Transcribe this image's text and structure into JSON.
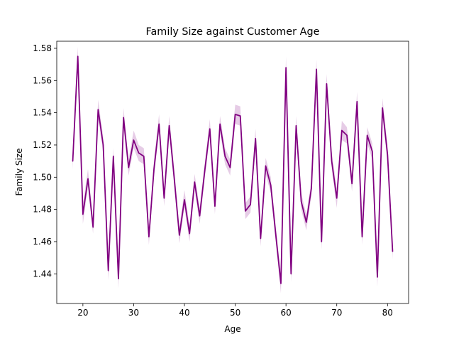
{
  "chart_data": {
    "type": "line",
    "title": "Family Size against Customer Age",
    "xlabel": "Age",
    "ylabel": "Family Size",
    "xlim": [
      14.85,
      84.15
    ],
    "ylim": [
      1.4216,
      1.5844
    ],
    "xticks": [
      20,
      30,
      40,
      50,
      60,
      70,
      80
    ],
    "yticks": [
      1.44,
      1.46,
      1.48,
      1.5,
      1.52,
      1.54,
      1.56,
      1.58
    ],
    "ytick_labels": [
      "1.44",
      "1.46",
      "1.48",
      "1.50",
      "1.52",
      "1.54",
      "1.56",
      "1.58"
    ],
    "grid": false,
    "line_color": "#800080",
    "band_color": "#800080",
    "series": [
      {
        "x": [
          18,
          19,
          20,
          21,
          22,
          23,
          24,
          25,
          26,
          27,
          28,
          29,
          30,
          31,
          32,
          33,
          34,
          35,
          36,
          37,
          38,
          39,
          40,
          41,
          42,
          43,
          44,
          45,
          46,
          47,
          48,
          49,
          50,
          51,
          52,
          53,
          54,
          55,
          56,
          57,
          58,
          59,
          60,
          61,
          62,
          63,
          64,
          65,
          66,
          67,
          68,
          69,
          70,
          71,
          72,
          73,
          74,
          75,
          76,
          77,
          78,
          79,
          80,
          81
        ],
        "y": [
          1.51,
          1.575,
          1.477,
          1.499,
          1.469,
          1.542,
          1.52,
          1.442,
          1.513,
          1.437,
          1.537,
          1.506,
          1.523,
          1.515,
          1.513,
          1.463,
          1.505,
          1.533,
          1.487,
          1.532,
          1.499,
          1.464,
          1.486,
          1.465,
          1.497,
          1.476,
          1.504,
          1.53,
          1.482,
          1.533,
          1.513,
          1.506,
          1.539,
          1.538,
          1.479,
          1.483,
          1.524,
          1.462,
          1.507,
          1.495,
          1.464,
          1.434,
          1.568,
          1.44,
          1.532,
          1.485,
          1.472,
          1.493,
          1.567,
          1.46,
          1.558,
          1.51,
          1.487,
          1.529,
          1.526,
          1.496,
          1.547,
          1.463,
          1.526,
          1.516,
          1.438,
          1.543,
          1.514,
          1.454
        ],
        "lower": [
          1.505,
          1.568,
          1.471,
          1.494,
          1.465,
          1.537,
          1.515,
          1.436,
          1.508,
          1.431,
          1.531,
          1.501,
          1.518,
          1.51,
          1.508,
          1.458,
          1.5,
          1.528,
          1.482,
          1.527,
          1.494,
          1.459,
          1.481,
          1.46,
          1.492,
          1.471,
          1.499,
          1.525,
          1.477,
          1.528,
          1.508,
          1.501,
          1.533,
          1.532,
          1.474,
          1.478,
          1.519,
          1.457,
          1.502,
          1.49,
          1.459,
          1.428,
          1.562,
          1.435,
          1.527,
          1.48,
          1.467,
          1.488,
          1.561,
          1.455,
          1.553,
          1.505,
          1.481,
          1.523,
          1.521,
          1.491,
          1.541,
          1.458,
          1.521,
          1.511,
          1.432,
          1.538,
          1.508,
          1.449
        ],
        "upper": [
          1.516,
          1.581,
          1.483,
          1.505,
          1.474,
          1.548,
          1.525,
          1.448,
          1.518,
          1.443,
          1.543,
          1.511,
          1.529,
          1.52,
          1.518,
          1.468,
          1.511,
          1.539,
          1.492,
          1.538,
          1.505,
          1.469,
          1.492,
          1.47,
          1.502,
          1.481,
          1.509,
          1.536,
          1.487,
          1.538,
          1.518,
          1.511,
          1.545,
          1.544,
          1.484,
          1.488,
          1.53,
          1.467,
          1.512,
          1.5,
          1.469,
          1.44,
          1.575,
          1.446,
          1.538,
          1.49,
          1.477,
          1.498,
          1.573,
          1.465,
          1.564,
          1.516,
          1.493,
          1.535,
          1.531,
          1.501,
          1.553,
          1.468,
          1.531,
          1.521,
          1.444,
          1.549,
          1.52,
          1.46
        ]
      }
    ]
  }
}
